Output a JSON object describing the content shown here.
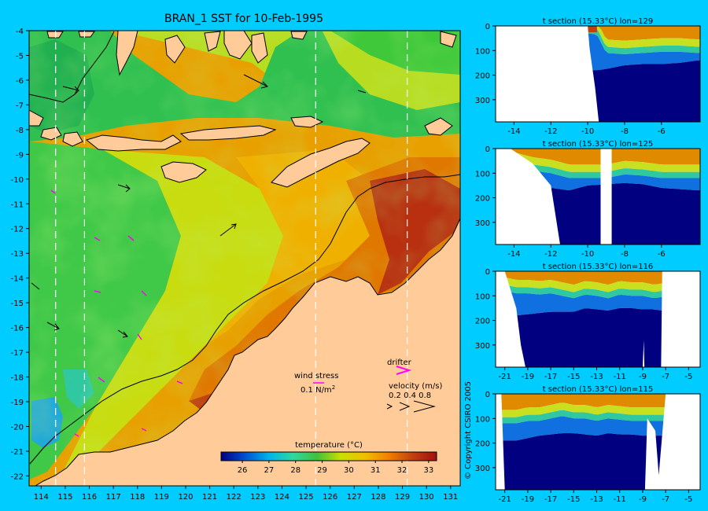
{
  "map": {
    "title": "BRAN_1 SST for 10-Feb-1995",
    "x_ticks": [
      "114",
      "115",
      "116",
      "117",
      "118",
      "119",
      "120",
      "121",
      "122",
      "123",
      "124",
      "125",
      "126",
      "127",
      "128",
      "129",
      "130",
      "131"
    ],
    "y_ticks": [
      "-4",
      "-5",
      "-6",
      "-7",
      "-8",
      "-9",
      "-10",
      "-11",
      "-12",
      "-13",
      "-14",
      "-15",
      "-16",
      "-17",
      "-18",
      "-19",
      "-20",
      "-21",
      "-22"
    ],
    "xlim": [
      113.5,
      131.4
    ],
    "ylim": [
      -22.4,
      -4
    ],
    "section_lons": [
      114.6,
      115.8,
      125.4,
      129.2
    ],
    "colorbar": {
      "label": "temperature (°C)",
      "ticks": [
        "26",
        "27",
        "28",
        "29",
        "30",
        "31",
        "32",
        "33"
      ],
      "range": [
        25.2,
        33.3
      ],
      "colors": [
        "#000080",
        "#0050d0",
        "#00b4e8",
        "#30d8a0",
        "#40c040",
        "#c8e000",
        "#f0c000",
        "#f08000",
        "#c04010",
        "#a01010"
      ]
    },
    "wind_legend": {
      "label": "wind stress",
      "value": "0.1 N/m",
      "sup": "2"
    },
    "drifter_legend": {
      "label": "drifter"
    },
    "velocity_legend": {
      "label": "velocity (m/s)",
      "values": "0.2 0.4 0.8"
    },
    "colors": {
      "land": "#ffcc99",
      "background": "#00ccff",
      "wind_arrow": "#ff00ff",
      "drifter": "#ff00ff",
      "deep_water": "#000080"
    }
  },
  "copyright": "© Copyright CSIRO 2005",
  "chart_data": [
    {
      "type": "heatmap",
      "title": "BRAN_1 SST for 10-Feb-1995",
      "xlabel": "",
      "ylabel": "",
      "xlim": [
        113.5,
        131.4
      ],
      "ylim": [
        -22.4,
        -4
      ],
      "colorbar_label": "temperature (°C)",
      "colorbar_range": [
        25.2,
        33.3
      ],
      "section_lons": [
        114.6,
        115.8,
        125.4,
        129.2
      ]
    },
    {
      "type": "heatmap",
      "title": "t section (15.33°C) lon=129",
      "xlim": [
        -15,
        -3.9
      ],
      "ylim": [
        390,
        0
      ],
      "x_ticks": [
        "-14",
        "-12",
        "-10",
        "-8",
        "-6"
      ],
      "x_tick_values": [
        -14,
        -12,
        -10,
        -8,
        -6
      ],
      "y_ticks": [
        "0",
        "100",
        "200",
        "300"
      ],
      "y_tick_values": [
        0,
        100,
        200,
        300
      ],
      "iso_depth": {
        "lat": [
          -14.5,
          -13,
          -12,
          -11,
          -10,
          -9.5,
          -9,
          -8,
          -7,
          -6,
          -5,
          -4
        ],
        "depth": [
          0,
          0,
          0,
          0,
          0,
          5,
          80,
          85,
          80,
          75,
          75,
          80
        ]
      },
      "cold_depth": {
        "lat": [
          -9.5,
          -9,
          -8,
          -7,
          -6,
          -5,
          -4
        ],
        "depth": [
          180,
          175,
          160,
          155,
          155,
          150,
          140
        ]
      },
      "seafloor": {
        "lat": [
          -15,
          -10,
          -9.9,
          -9.6,
          -9.4,
          -4
        ],
        "depth": [
          0,
          0,
          90,
          250,
          390,
          390
        ]
      }
    },
    {
      "type": "heatmap",
      "title": "t section (15.33°C) lon=125",
      "xlim": [
        -15,
        -3.9
      ],
      "ylim": [
        390,
        0
      ],
      "x_ticks": [
        "-14",
        "-12",
        "-10",
        "-8",
        "-6"
      ],
      "x_tick_values": [
        -14,
        -12,
        -10,
        -8,
        -6
      ],
      "y_ticks": [
        "0",
        "100",
        "200",
        "300"
      ],
      "y_tick_values": [
        0,
        100,
        200,
        300
      ],
      "iso_depth": {
        "lat": [
          -14,
          -13,
          -12,
          -11,
          -10,
          -9,
          -8,
          -7,
          -6,
          -5,
          -4
        ],
        "depth": [
          40,
          60,
          70,
          90,
          90,
          90,
          75,
          80,
          90,
          90,
          90
        ]
      },
      "cold_depth": {
        "lat": [
          -12,
          -11,
          -10,
          -9,
          -8,
          -7,
          -6,
          -5,
          -4
        ],
        "depth": [
          160,
          170,
          150,
          145,
          140,
          145,
          160,
          165,
          170
        ]
      },
      "seafloor": {
        "lat": [
          -15,
          -14.2,
          -13,
          -12,
          -11.5,
          -11,
          -4
        ],
        "depth": [
          0,
          0,
          60,
          150,
          390,
          390,
          390
        ]
      },
      "gap": [
        -9.3,
        -8.7
      ]
    },
    {
      "type": "heatmap",
      "title": "t section (15.33°C) lon=116",
      "xlim": [
        -21.8,
        -4
      ],
      "ylim": [
        390,
        0
      ],
      "x_ticks": [
        "-21",
        "-19",
        "-17",
        "-15",
        "-13",
        "-11",
        "-9",
        "-7",
        "-5"
      ],
      "x_tick_values": [
        -21,
        -19,
        -17,
        -15,
        -13,
        -11,
        -9,
        -7,
        -5
      ],
      "y_ticks": [
        "0",
        "100",
        "200",
        "300"
      ],
      "y_tick_values": [
        0,
        100,
        200,
        300
      ],
      "iso_depth": {
        "lat": [
          -21,
          -20,
          -19,
          -18,
          -17,
          -16,
          -15,
          -14,
          -13,
          -12,
          -11,
          -10,
          -9,
          -8,
          -7.4
        ],
        "depth": [
          50,
          60,
          60,
          65,
          60,
          70,
          80,
          65,
          70,
          80,
          65,
          70,
          70,
          80,
          75
        ]
      },
      "cold_depth": {
        "lat": [
          -21,
          -20,
          -19,
          -18,
          -17,
          -16,
          -15,
          -14,
          -13,
          -12,
          -11,
          -10,
          -9,
          -8,
          -7.4
        ],
        "depth": [
          170,
          180,
          175,
          170,
          165,
          165,
          165,
          150,
          155,
          160,
          150,
          150,
          155,
          155,
          160
        ]
      },
      "seafloor": {
        "lat": [
          -21.8,
          -21,
          -20,
          -19.6,
          -19.2,
          -9,
          -8.9,
          -8.85,
          -8.8,
          -7.4,
          -7.3,
          -4
        ],
        "depth": [
          0,
          0,
          150,
          300,
          390,
          390,
          280,
          390,
          390,
          390,
          0,
          0
        ]
      }
    },
    {
      "type": "heatmap",
      "title": "t section (15.33°C) lon=115",
      "xlim": [
        -21.8,
        -4
      ],
      "ylim": [
        390,
        0
      ],
      "x_ticks": [
        "-21",
        "-19",
        "-17",
        "-15",
        "-13",
        "-11",
        "-9",
        "-7",
        "-5"
      ],
      "x_tick_values": [
        -21,
        -19,
        -17,
        -15,
        -13,
        -11,
        -9,
        -7,
        -5
      ],
      "y_ticks": [
        "0",
        "100",
        "200",
        "300"
      ],
      "y_tick_values": [
        0,
        100,
        200,
        300
      ],
      "iso_depth": {
        "lat": [
          -21,
          -20,
          -19,
          -18,
          -17,
          -16,
          -15,
          -14,
          -13,
          -12,
          -11,
          -10,
          -9
        ],
        "depth": [
          90,
          90,
          80,
          80,
          70,
          60,
          70,
          70,
          80,
          70,
          75,
          80,
          80
        ]
      },
      "cold_depth": {
        "lat": [
          -21,
          -20,
          -19,
          -18,
          -17,
          -16,
          -15,
          -14,
          -13,
          -12,
          -11,
          -10,
          -9
        ],
        "depth": [
          190,
          190,
          180,
          170,
          165,
          160,
          160,
          165,
          170,
          160,
          165,
          165,
          170
        ]
      },
      "seafloor": {
        "lat": [
          -21.8,
          -21.3,
          -21,
          -8.8,
          -8.6,
          -7.9,
          -7.6,
          -7,
          -4
        ],
        "depth": [
          0,
          0,
          390,
          390,
          100,
          150,
          330,
          0,
          0
        ]
      }
    }
  ]
}
